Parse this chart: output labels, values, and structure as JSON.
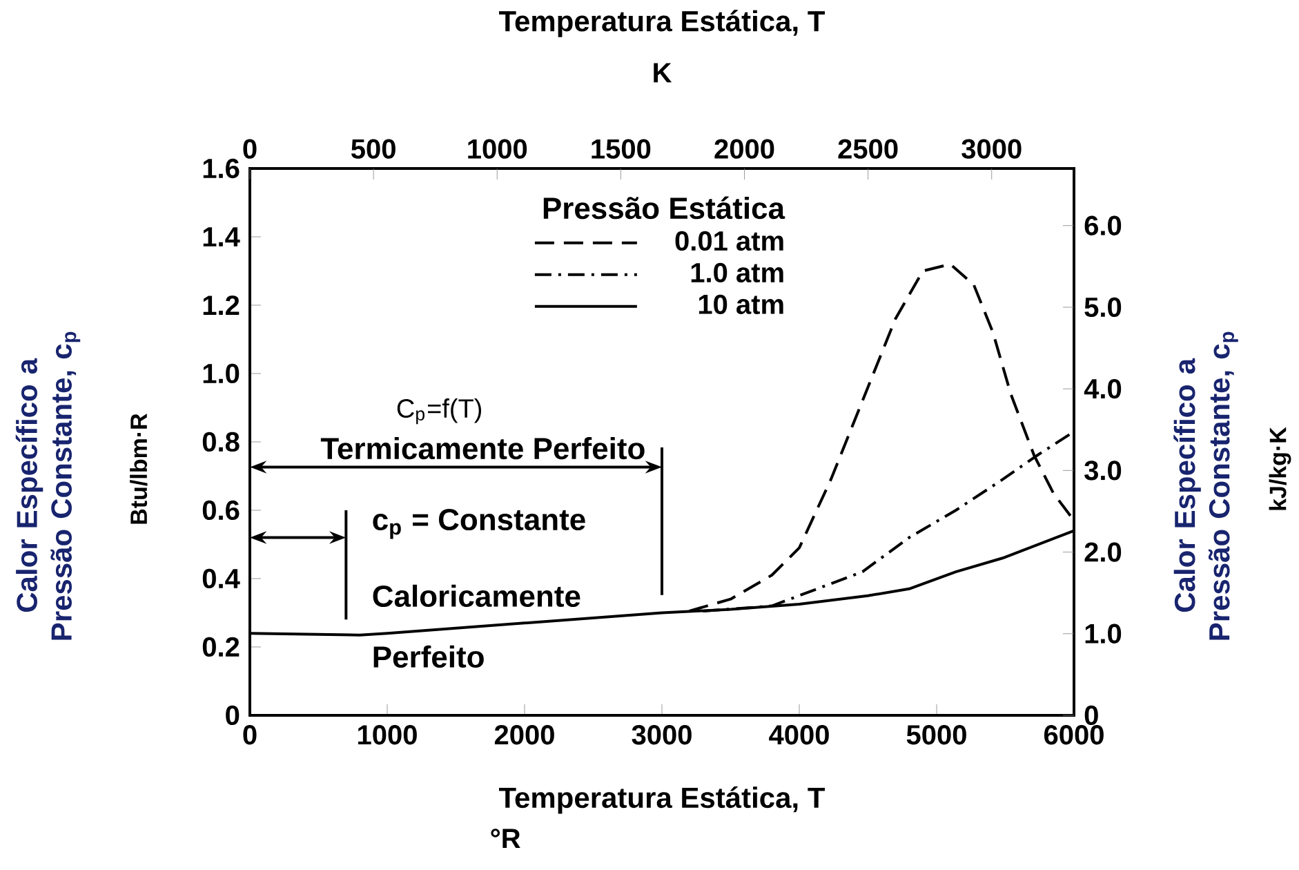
{
  "chart_data": {
    "type": "line",
    "x2label": "Temperatura Estática, T",
    "xlabel": "Temperatura Estática, T",
    "ylabel": "Calor Específico a Pressão Constante, c$_{p}$",
    "y2label": "Calor Específico a Pressão Constante, c$_{p}$",
    "legend_title": "Pressão Estática",
    "legend": "top",
    "xlim": [
      0,
      6000
    ],
    "xticks": [
      0,
      1000,
      2000,
      3000,
      4000,
      5000,
      6000
    ],
    "x2lim": [
      0,
      3333
    ],
    "x2ticks": [
      0,
      500,
      1000,
      1500,
      2000,
      2500,
      3000
    ],
    "ylim": [
      0,
      1.6
    ],
    "yticks": [
      0,
      0.2,
      0.4,
      0.6,
      0.8,
      {
        "value": 1,
        "label": "1.0"
      },
      1.2,
      1.4,
      1.6
    ],
    "y2lim": [
      0,
      6.7
    ],
    "y2ticks": [
      0,
      {
        "value": 1,
        "label": "1.0"
      },
      {
        "value": 2,
        "label": "2.0"
      },
      {
        "value": 3,
        "label": "3.0"
      },
      {
        "value": 4,
        "label": "4.0"
      },
      {
        "value": 5,
        "label": "5.0"
      },
      {
        "value": 6,
        "label": "6.0"
      }
    ],
    "series": [
      {
        "name": "0.01 atm",
        "color": "#000000",
        "line_style": "dashed",
        "x": [
          3200,
          3500,
          3800,
          4000,
          4230,
          4460,
          4700,
          4900,
          5100,
          5270,
          5410,
          5540,
          5710,
          5850,
          6000
        ],
        "values": [
          0.305,
          0.34,
          0.41,
          0.49,
          0.69,
          0.92,
          1.16,
          1.3,
          1.32,
          1.26,
          1.12,
          0.94,
          0.76,
          0.65,
          0.57
        ]
      },
      {
        "name": "1.0 atm",
        "color": "#000000",
        "line_style": "dashdot",
        "x": [
          3300,
          3800,
          4130,
          4460,
          4800,
          5140,
          5480,
          5730,
          6000
        ],
        "values": [
          0.305,
          0.32,
          0.37,
          0.42,
          0.52,
          0.6,
          0.69,
          0.76,
          0.83
        ]
      },
      {
        "name": "10 atm",
        "color": "#000000",
        "line_style": "solid",
        "x": [
          0,
          800,
          1000,
          2000,
          3000,
          3500,
          4000,
          4500,
          4800,
          5140,
          5480,
          6000
        ],
        "values": [
          0.24,
          0.235,
          0.24,
          0.27,
          0.3,
          0.31,
          0.325,
          0.35,
          0.37,
          0.42,
          0.46,
          0.54
        ]
      }
    ],
    "annotations": [
      "C$_{p}$=f(T)",
      "Termicamente Perfeito",
      "c$_{p}$ = Constante",
      "Caloricamente Perfeito",
      "°R",
      "K",
      "Btu/lbm·R",
      "kJ/kg·K"
    ]
  }
}
